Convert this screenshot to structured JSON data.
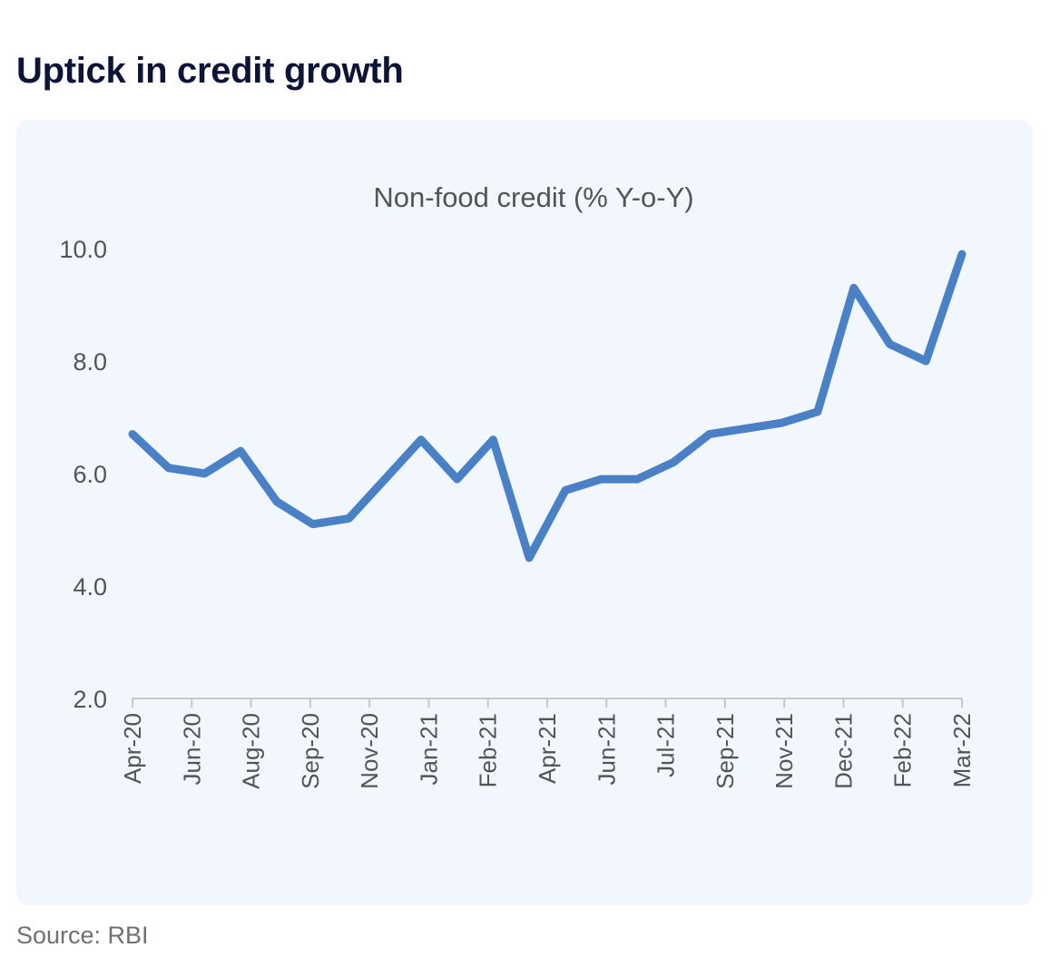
{
  "page": {
    "headline": "Uptick in credit growth",
    "source": "Source: RBI"
  },
  "colors": {
    "line": "#4a80c6",
    "card_background": "#f1f7fd",
    "headline": "#0d1536"
  },
  "chart_data": {
    "type": "line",
    "title": "Non-food credit (% Y-o-Y)",
    "xlabel": "",
    "ylabel": "",
    "ylim": [
      2.0,
      10.0
    ],
    "y_ticks": [
      "2.0",
      "4.0",
      "6.0",
      "8.0",
      "10.0"
    ],
    "x_tick_labels": [
      "Apr-20",
      "Jun-20",
      "Aug-20",
      "Sep-20",
      "Nov-20",
      "Jan-21",
      "Feb-21",
      "Apr-21",
      "Jun-21",
      "Jul-21",
      "Sep-21",
      "Nov-21",
      "Dec-21",
      "Feb-22",
      "Mar-22"
    ],
    "grid": false,
    "legend": "none",
    "series": [
      {
        "values": [
          6.7,
          6.1,
          6.0,
          6.4,
          5.5,
          5.1,
          5.2,
          5.9,
          6.6,
          5.9,
          6.6,
          4.5,
          5.7,
          5.9,
          5.9,
          6.2,
          6.7,
          6.8,
          6.9,
          7.1,
          9.3,
          8.3,
          8.0,
          9.9
        ]
      }
    ]
  }
}
